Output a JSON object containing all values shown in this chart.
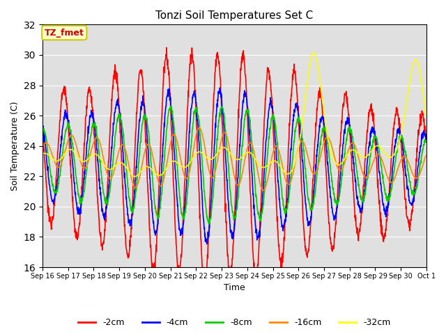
{
  "title": "Tonzi Soil Temperatures Set C",
  "xlabel": "Time",
  "ylabel": "Soil Temperature (C)",
  "ylim": [
    16,
    32
  ],
  "yticks": [
    16,
    18,
    20,
    22,
    24,
    26,
    28,
    30,
    32
  ],
  "legend_label": "TZ_fmet",
  "legend_box_color": "#ffffcc",
  "legend_box_edge": "#cccc00",
  "legend_text_color": "#cc0000",
  "bg_color": "#e0e0e0",
  "colors": {
    "-2cm": "#ff0000",
    "-4cm": "#0000ff",
    "-8cm": "#00cc00",
    "-16cm": "#ff8800",
    "-32cm": "#ffff00"
  },
  "line_width": 1.2,
  "num_days": 15,
  "start_day": 16,
  "figwidth": 6.4,
  "figheight": 4.8,
  "dpi": 100
}
